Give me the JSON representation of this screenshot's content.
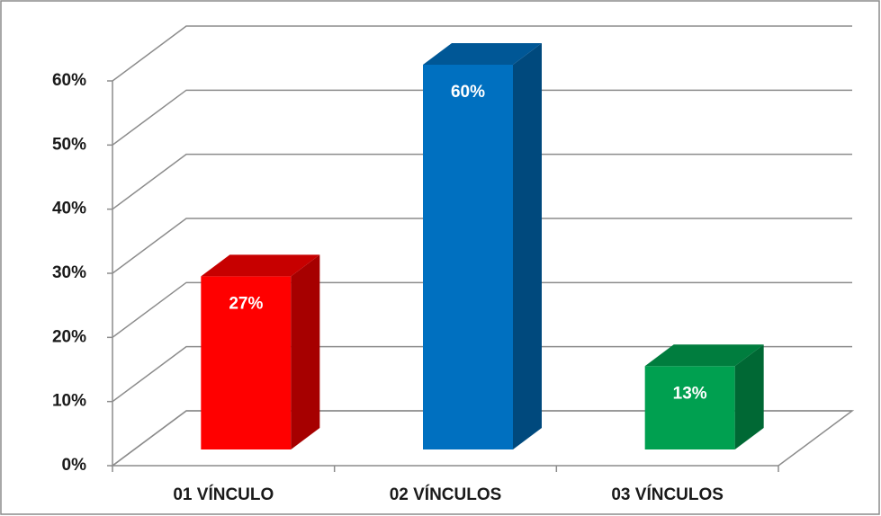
{
  "chart_data": {
    "type": "bar3d",
    "categories": [
      "01 VÍNCULO",
      "02 VÍNCULOS",
      "03 VÍNCULOS"
    ],
    "values": [
      27,
      60,
      13
    ],
    "value_labels": [
      "27%",
      "60%",
      "13%"
    ],
    "colors": [
      "#ff0000",
      "#0070c0",
      "#00a050"
    ],
    "ylim": [
      0,
      60
    ],
    "yticks": [
      {
        "value": 0,
        "label": "0%"
      },
      {
        "value": 10,
        "label": "10%"
      },
      {
        "value": 20,
        "label": "20%"
      },
      {
        "value": 30,
        "label": "30%"
      },
      {
        "value": 40,
        "label": "40%"
      },
      {
        "value": 50,
        "label": "50%"
      },
      {
        "value": 60,
        "label": "60%"
      }
    ],
    "grid": true
  }
}
